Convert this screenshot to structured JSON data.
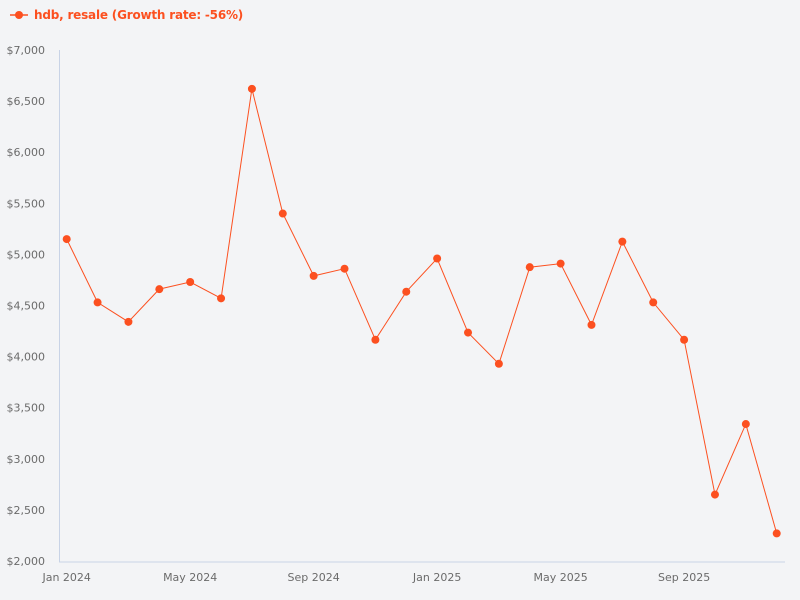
{
  "legend": {
    "label": "hdb, resale (Growth rate: -56%)",
    "icon": "line-marker-icon",
    "color": "#fc5020"
  },
  "colors": {
    "series": "#fc5020",
    "axis": "#c8d3e6",
    "tick_text": "#6b6b6b",
    "background": "#f3f4f6"
  },
  "chart_data": {
    "type": "line",
    "title": "",
    "xlabel": "",
    "ylabel": "",
    "ylim": [
      2000,
      7000
    ],
    "y_ticks": [
      "$2,000",
      "$2,500",
      "$3,000",
      "$3,500",
      "$4,000",
      "$4,500",
      "$5,000",
      "$5,500",
      "$6,000",
      "$6,500",
      "$7,000"
    ],
    "y_tick_values": [
      2000,
      2500,
      3000,
      3500,
      4000,
      4500,
      5000,
      5500,
      6000,
      6500,
      7000
    ],
    "x_ticks": [
      "Jan 2024",
      "May 2024",
      "Sep 2024",
      "Jan 2025",
      "May 2025",
      "Sep 2025"
    ],
    "x_tick_indices": [
      0,
      4,
      8,
      12,
      16,
      20
    ],
    "grid": false,
    "legend_position": "top-left",
    "x": [
      "Jan 2024",
      "Feb 2024",
      "Mar 2024",
      "Apr 2024",
      "May 2024",
      "Jun 2024",
      "Jul 2024",
      "Aug 2024",
      "Sep 2024",
      "Oct 2024",
      "Nov 2024",
      "Dec 2024",
      "Jan 2025",
      "Feb 2025",
      "Mar 2025",
      "Apr 2025",
      "May 2025",
      "Jun 2025",
      "Jul 2025",
      "Aug 2025",
      "Sep 2025",
      "Oct 2025",
      "Nov 2025",
      "Dec 2025"
    ],
    "series": [
      {
        "name": "hdb, resale (Growth rate: -56%)",
        "values": [
          5150,
          4530,
          4340,
          4660,
          4730,
          4570,
          6620,
          5400,
          4790,
          4860,
          4165,
          4635,
          4960,
          4235,
          3930,
          4875,
          4910,
          4310,
          5125,
          4530,
          4165,
          2650,
          3340,
          2270
        ]
      }
    ]
  }
}
